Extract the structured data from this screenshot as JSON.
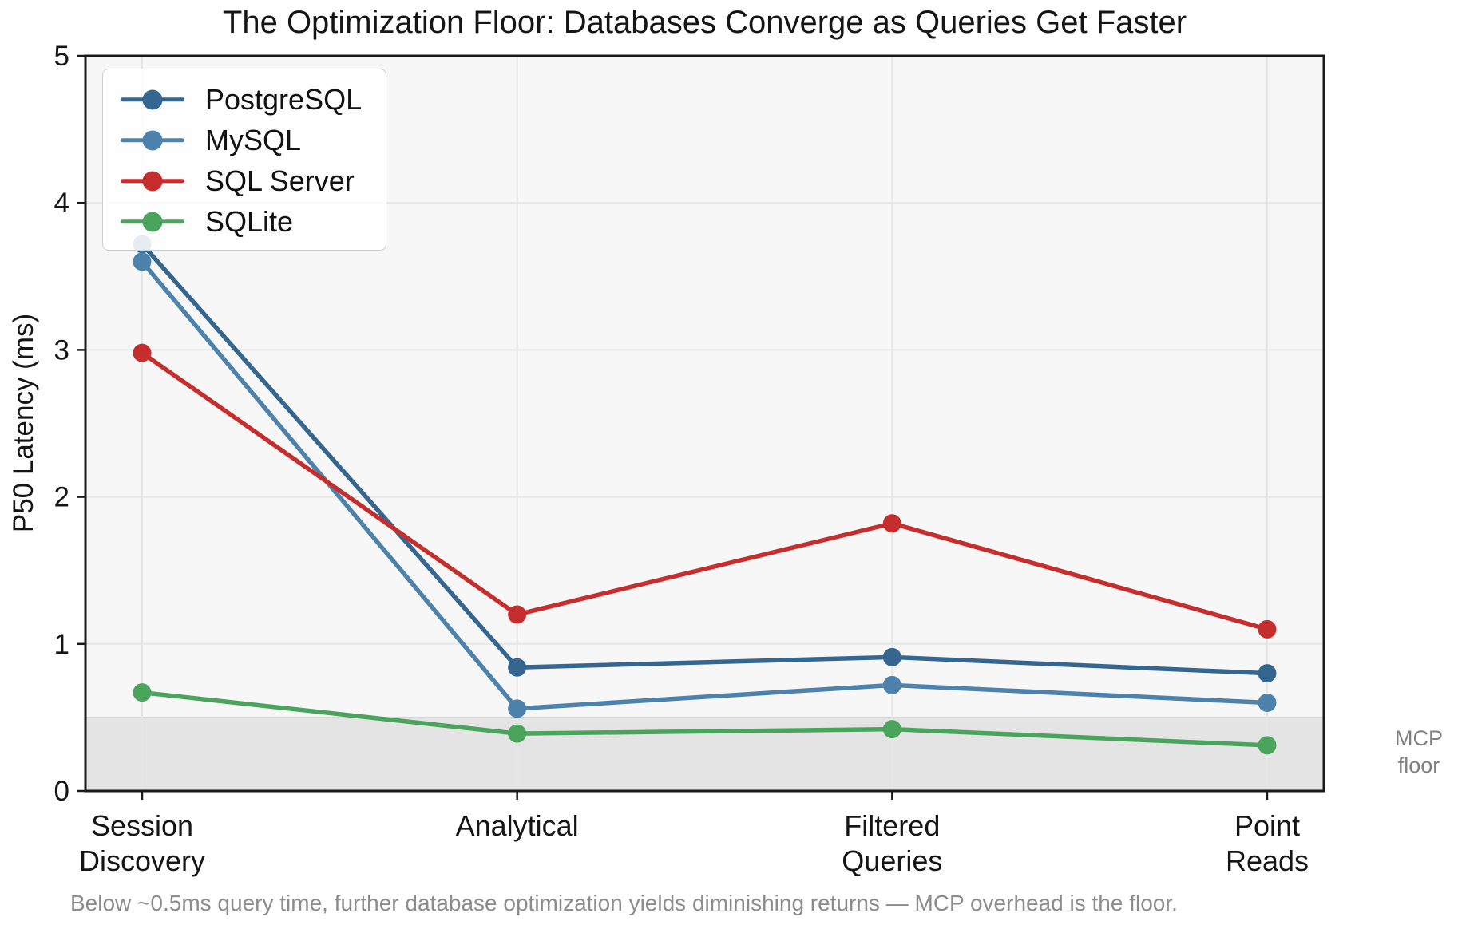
{
  "figure": {
    "caption": "Below ~0.5ms query time, further database optimization yields diminishing returns — MCP overhead is the floor."
  },
  "chart_data": {
    "type": "line",
    "title": "The Optimization Floor: Databases Converge as Queries Get Faster",
    "xlabel": "",
    "ylabel": "P50 Latency (ms)",
    "categories": [
      "Session\nDiscovery",
      "Analytical",
      "Filtered\nQueries",
      "Point\nReads"
    ],
    "series": [
      {
        "name": "PostgreSQL",
        "color": "#346690",
        "values": [
          3.72,
          0.84,
          0.91,
          0.8
        ]
      },
      {
        "name": "MySQL",
        "color": "#4C82AB",
        "values": [
          3.6,
          0.56,
          0.72,
          0.6
        ]
      },
      {
        "name": "SQL Server",
        "color": "#C62D2D",
        "values": [
          2.98,
          1.2,
          1.82,
          1.1
        ]
      },
      {
        "name": "SQLite",
        "color": "#4BA45C",
        "values": [
          0.67,
          0.39,
          0.42,
          0.31
        ]
      }
    ],
    "ylim": [
      0,
      5
    ],
    "yticks": [
      0,
      1,
      2,
      3,
      4,
      5
    ],
    "grid": true,
    "legend_position": "upper left",
    "plot_bg": "#f7f7f7",
    "grid_color": "#e6e6e6",
    "axis_color": "#1a1a1a",
    "floor_band": {
      "ymin": 0,
      "ymax": 0.5,
      "color": "#e4e4e4",
      "edge_color": "#d6d6d6",
      "label": "MCP\nfloor"
    }
  }
}
